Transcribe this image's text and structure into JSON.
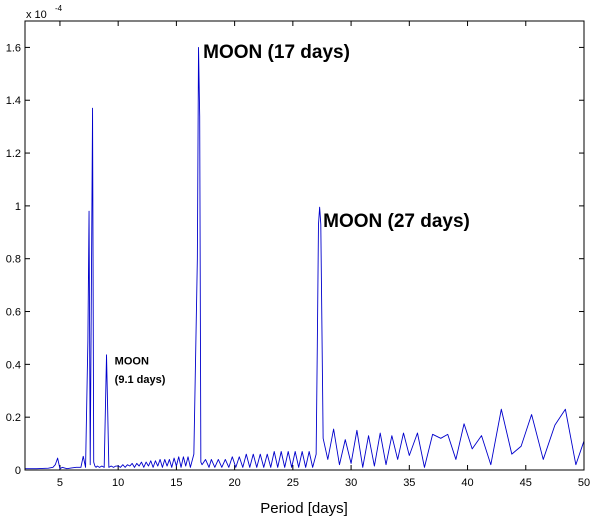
{
  "chart_data": {
    "type": "line",
    "title": "",
    "xlabel": "Period [days]",
    "ylabel": "",
    "xlim": [
      2,
      50
    ],
    "ylim": [
      0,
      0.00017
    ],
    "y_scale_exponent": {
      "base": "x 10",
      "power": "-4"
    },
    "x_ticks": [
      5,
      10,
      15,
      20,
      25,
      30,
      35,
      40,
      45,
      50
    ],
    "x_tick_labels": [
      "5",
      "10",
      "15",
      "20",
      "25",
      "30",
      "35",
      "40",
      "45",
      "50"
    ],
    "y_ticks": [
      0,
      2e-05,
      4e-05,
      6e-05,
      8e-05,
      0.0001,
      0.00012,
      0.00014,
      0.00016
    ],
    "y_tick_labels": [
      "0",
      "0.2",
      "0.4",
      "0.6",
      "0.8",
      "1",
      "1.2",
      "1.4",
      "1.6"
    ],
    "grid": false,
    "series": [
      {
        "color": "#0000cc",
        "x": [
          2.0,
          3.0,
          4.0,
          4.4,
          4.6,
          4.8,
          5.0,
          5.2,
          5.6,
          6.0,
          6.4,
          6.8,
          7.0,
          7.2,
          7.4,
          7.5,
          7.6,
          7.7,
          7.8,
          7.9,
          8.0,
          8.1,
          8.2,
          8.4,
          8.6,
          8.8,
          9.0,
          9.1,
          9.2,
          9.4,
          9.6,
          9.8,
          10.0,
          10.2,
          10.4,
          10.6,
          10.8,
          11.0,
          11.2,
          11.4,
          11.6,
          11.8,
          12.0,
          12.2,
          12.4,
          12.6,
          12.8,
          13.0,
          13.2,
          13.4,
          13.6,
          13.8,
          14.0,
          14.2,
          14.4,
          14.6,
          14.8,
          15.0,
          15.2,
          15.4,
          15.6,
          15.8,
          16.0,
          16.2,
          16.5,
          16.8,
          16.9,
          17.0,
          17.1,
          17.2,
          17.5,
          17.8,
          18.0,
          18.3,
          18.6,
          18.9,
          19.2,
          19.5,
          19.8,
          20.1,
          20.4,
          20.7,
          21.0,
          21.3,
          21.6,
          21.9,
          22.2,
          22.5,
          22.8,
          23.1,
          23.4,
          23.7,
          24.0,
          24.3,
          24.6,
          24.9,
          25.2,
          25.5,
          25.8,
          26.1,
          26.4,
          26.7,
          27.0,
          27.1,
          27.2,
          27.3,
          27.4,
          27.6,
          28.0,
          28.5,
          29.0,
          29.5,
          30.0,
          30.5,
          31.0,
          31.5,
          32.0,
          32.5,
          33.0,
          33.5,
          34.0,
          34.5,
          35.0,
          35.7,
          36.3,
          37.0,
          37.7,
          38.3,
          39.0,
          39.7,
          40.4,
          41.2,
          42.0,
          42.9,
          43.8,
          44.6,
          45.5,
          46.5,
          47.5,
          48.4,
          49.3,
          50.0
        ],
        "y": [
          5e-07,
          5e-07,
          7e-07,
          1e-06,
          2e-06,
          4.5e-06,
          5e-07,
          1e-06,
          5e-07,
          8e-07,
          1e-06,
          1e-06,
          5.2e-06,
          1e-06,
          4.9e-05,
          9.8e-05,
          2e-06,
          6.9e-05,
          0.000137,
          3e-06,
          1.5e-06,
          1e-06,
          1.5e-06,
          1e-06,
          1.5e-06,
          1e-06,
          4.36e-05,
          2.26e-05,
          1e-06,
          1.5e-06,
          1e-06,
          1.5e-06,
          1.5e-06,
          1e-06,
          2e-06,
          1e-06,
          2e-06,
          1.5e-06,
          2.5e-06,
          1e-06,
          2.5e-06,
          1.5e-06,
          3e-06,
          1e-06,
          3e-06,
          1.5e-06,
          3.5e-06,
          1e-06,
          3.5e-06,
          1.5e-06,
          4e-06,
          1e-06,
          4e-06,
          1.5e-06,
          4e-06,
          1e-06,
          4.5e-06,
          1.5e-06,
          5e-06,
          1e-06,
          5e-06,
          1.5e-06,
          5e-06,
          1e-06,
          6e-06,
          8e-05,
          0.00016,
          0.000134,
          3e-06,
          2e-06,
          4e-06,
          1e-06,
          4e-06,
          1e-06,
          4e-06,
          1e-06,
          4e-06,
          1e-06,
          5e-06,
          1e-06,
          5e-06,
          1e-06,
          6e-06,
          1e-06,
          6e-06,
          1e-06,
          6e-06,
          1e-06,
          6e-06,
          1e-06,
          7e-06,
          1e-06,
          7e-06,
          1e-06,
          7e-06,
          1e-06,
          7e-06,
          1e-06,
          7e-06,
          1e-06,
          7e-06,
          1e-06,
          6e-06,
          4.7e-05,
          9.3e-05,
          9.95e-05,
          9.3e-05,
          1.2e-05,
          4e-06,
          1.55e-05,
          2e-06,
          1.15e-05,
          2.5e-06,
          1.5e-05,
          1e-06,
          1.3e-05,
          1.5e-06,
          1.4e-05,
          2e-06,
          1.3e-05,
          4e-06,
          1.4e-05,
          5.5e-06,
          1.4e-05,
          1e-06,
          1.35e-05,
          1.2e-05,
          1.35e-05,
          4e-06,
          1.75e-05,
          8e-06,
          1.3e-05,
          2e-06,
          2.3e-05,
          6e-06,
          9e-06,
          2.1e-05,
          4e-06,
          1.7e-05,
          2.3e-05,
          2e-06,
          1.1e-05
        ]
      }
    ],
    "annotations": [
      {
        "text": "MOON (17 days)",
        "x": 17.3,
        "y": 0.000156,
        "size": "large"
      },
      {
        "text": "MOON (27 days)",
        "x": 27.6,
        "y": 9.2e-05,
        "size": "large"
      },
      {
        "text": "MOON",
        "x": 9.7,
        "y": 4e-05,
        "size": "small"
      },
      {
        "text": "(9.1 days)",
        "x": 9.7,
        "y": 3.3e-05,
        "size": "small"
      }
    ]
  }
}
